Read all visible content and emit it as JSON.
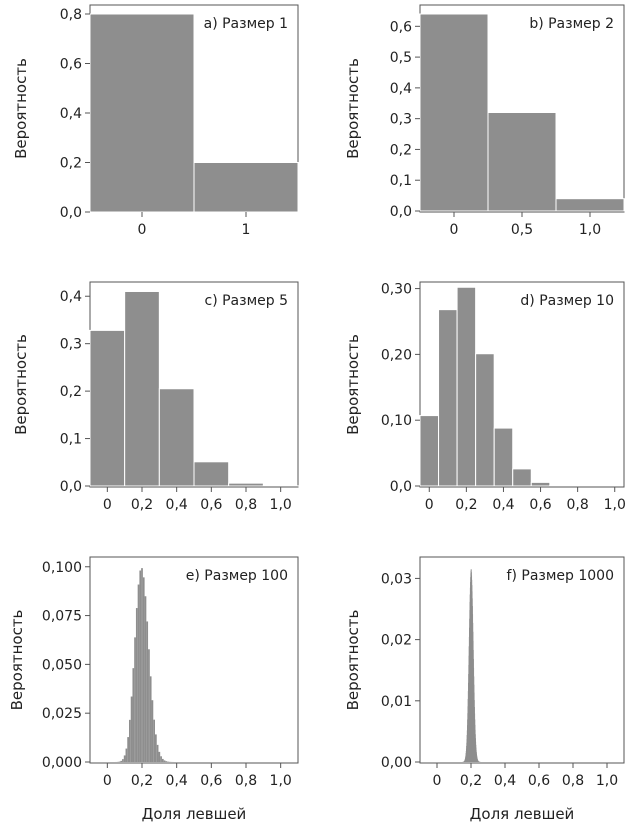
{
  "figure": {
    "xlabel": "Доля левшей",
    "ylabel": "Вероятность"
  },
  "chart_data": [
    {
      "id": "a",
      "type": "bar",
      "title": "a) Размер 1",
      "categories": [
        0,
        1
      ],
      "values": [
        0.8,
        0.2
      ],
      "xticks": [
        0,
        1
      ],
      "xtick_labels": [
        "0",
        "1"
      ],
      "ylim": [
        0,
        0.8
      ],
      "yticks": [
        0,
        0.2,
        0.4,
        0.6,
        0.8
      ],
      "ytick_labels": [
        "0,0",
        "0,2",
        "0,4",
        "0,6",
        "0,8"
      ],
      "xlabel": "",
      "ylabel": "Вероятность"
    },
    {
      "id": "b",
      "type": "bar",
      "title": "b) Размер 2",
      "categories": [
        0,
        0.5,
        1.0
      ],
      "values": [
        0.64,
        0.32,
        0.04
      ],
      "xticks": [
        0,
        0.5,
        1.0
      ],
      "xtick_labels": [
        "0",
        "0,5",
        "1,0"
      ],
      "ylim": [
        0,
        0.64
      ],
      "yticks": [
        0,
        0.1,
        0.2,
        0.3,
        0.4,
        0.5,
        0.6
      ],
      "ytick_labels": [
        "0,0",
        "0,1",
        "0,2",
        "0,3",
        "0,4",
        "0,5",
        "0,6"
      ],
      "xlabel": "",
      "ylabel": "Вероятность"
    },
    {
      "id": "c",
      "type": "bar",
      "title": "c) Размер 5",
      "categories": [
        0,
        0.2,
        0.4,
        0.6,
        0.8,
        1.0
      ],
      "values": [
        0.328,
        0.41,
        0.205,
        0.051,
        0.006,
        0.0003
      ],
      "xticks": [
        0,
        0.2,
        0.4,
        0.6,
        0.8,
        1.0
      ],
      "xtick_labels": [
        "0",
        "0,2",
        "0,4",
        "0,6",
        "0,8",
        "1,0"
      ],
      "ylim": [
        0,
        0.43
      ],
      "yticks": [
        0,
        0.1,
        0.2,
        0.3,
        0.4
      ],
      "ytick_labels": [
        "0,0",
        "0,1",
        "0,2",
        "0,3",
        "0,4"
      ],
      "xlabel": "",
      "ylabel": "Вероятность"
    },
    {
      "id": "d",
      "type": "bar",
      "title": "d) Размер 10",
      "categories": [
        0,
        0.1,
        0.2,
        0.3,
        0.4,
        0.5,
        0.6,
        0.7,
        0.8,
        0.9,
        1.0
      ],
      "values": [
        0.107,
        0.268,
        0.302,
        0.201,
        0.088,
        0.026,
        0.0055,
        0.0008,
        0.0001,
        0.0,
        0.0
      ],
      "xticks": [
        0,
        0.2,
        0.4,
        0.6,
        0.8,
        1.0
      ],
      "xtick_labels": [
        "0",
        "0,2",
        "0,4",
        "0,6",
        "0,8",
        "1,0"
      ],
      "ylim": [
        0,
        0.31
      ],
      "yticks": [
        0,
        0.1,
        0.2,
        0.3
      ],
      "ytick_labels": [
        "0,0",
        "0,10",
        "0,20",
        "0,30"
      ],
      "xlabel": "",
      "ylabel": "Вероятность"
    },
    {
      "id": "e",
      "type": "bar",
      "title": "e) Размер 100",
      "binomial": {
        "n": 100,
        "p": 0.2
      },
      "xticks": [
        0,
        0.2,
        0.4,
        0.6,
        0.8,
        1.0
      ],
      "xtick_labels": [
        "0",
        "0,2",
        "0,4",
        "0,6",
        "0,8",
        "1,0"
      ],
      "ylim": [
        0,
        0.105
      ],
      "yticks": [
        0,
        0.025,
        0.05,
        0.075,
        0.1
      ],
      "ytick_labels": [
        "0,000",
        "0,025",
        "0,050",
        "0,075",
        "0,100"
      ],
      "xlabel": "Доля левшей",
      "ylabel": "Вероятность"
    },
    {
      "id": "f",
      "type": "bar",
      "title": "f) Размер 1000",
      "binomial": {
        "n": 1000,
        "p": 0.2
      },
      "xticks": [
        0,
        0.2,
        0.4,
        0.6,
        0.8,
        1.0
      ],
      "xtick_labels": [
        "0",
        "0,2",
        "0,4",
        "0,6",
        "0,8",
        "1,0"
      ],
      "ylim": [
        0,
        0.0335
      ],
      "yticks": [
        0,
        0.01,
        0.02,
        0.03
      ],
      "ytick_labels": [
        "0,00",
        "0,01",
        "0,02",
        "0,03"
      ],
      "xlabel": "Доля левшей",
      "ylabel": "Вероятность"
    }
  ]
}
